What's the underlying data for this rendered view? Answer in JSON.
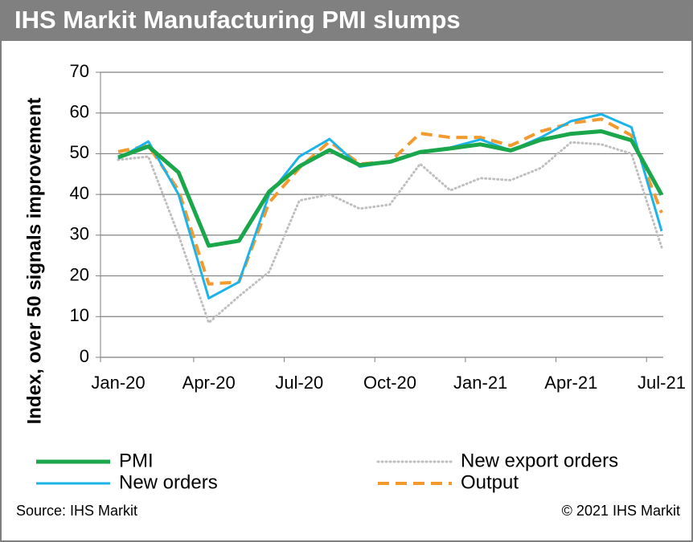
{
  "chart_data": {
    "type": "line",
    "title": "IHS Markit Manufacturing PMI slumps",
    "y_label": "Index, over 50 signals improvement",
    "source": "Source: IHS Markit",
    "copyright": "© 2021 IHS Markit",
    "categories": [
      "Jan-20",
      null,
      null,
      "Apr-20",
      null,
      null,
      "Jul-20",
      null,
      null,
      "Oct-20",
      null,
      null,
      "Jan-21",
      null,
      null,
      "Apr-21",
      null,
      null,
      "Jul-21"
    ],
    "ylim": [
      0,
      70
    ],
    "yticks": [
      0,
      10,
      20,
      30,
      40,
      50,
      60,
      70
    ],
    "grid": true,
    "series": [
      {
        "name": "PMI",
        "color": "#1aa64a",
        "style": "solid",
        "values": [
          49.1,
          51.8,
          45.4,
          27.4,
          28.6,
          40.7,
          46.9,
          50.9,
          47.2,
          48.0,
          50.4,
          51.3,
          52.3,
          50.8,
          53.4,
          54.9,
          55.5,
          53.3,
          39.9
        ]
      },
      {
        "name": "New export orders",
        "color": "#bfbfbf",
        "style": "dotted",
        "values": [
          48.5,
          49.3,
          30.0,
          8.5,
          15.0,
          21.0,
          38.5,
          40.0,
          36.5,
          37.5,
          47.5,
          41.0,
          44.0,
          43.5,
          46.5,
          52.8,
          52.3,
          50.0,
          27.0
        ]
      },
      {
        "name": "New orders",
        "color": "#1cb4e8",
        "style": "solid",
        "values": [
          48.8,
          53.0,
          40.0,
          14.5,
          18.5,
          40.0,
          49.3,
          53.6,
          46.8,
          48.0,
          50.5,
          51.5,
          53.5,
          50.8,
          54.0,
          58.0,
          59.7,
          56.5,
          31.0
        ]
      },
      {
        "name": "Output",
        "color": "#f39a2e",
        "style": "dashed",
        "values": [
          50.5,
          52.0,
          41.0,
          18.0,
          18.5,
          38.0,
          46.5,
          53.0,
          47.5,
          48.0,
          55.0,
          54.0,
          54.0,
          52.0,
          55.5,
          57.5,
          58.5,
          54.5,
          35.5
        ]
      }
    ]
  }
}
